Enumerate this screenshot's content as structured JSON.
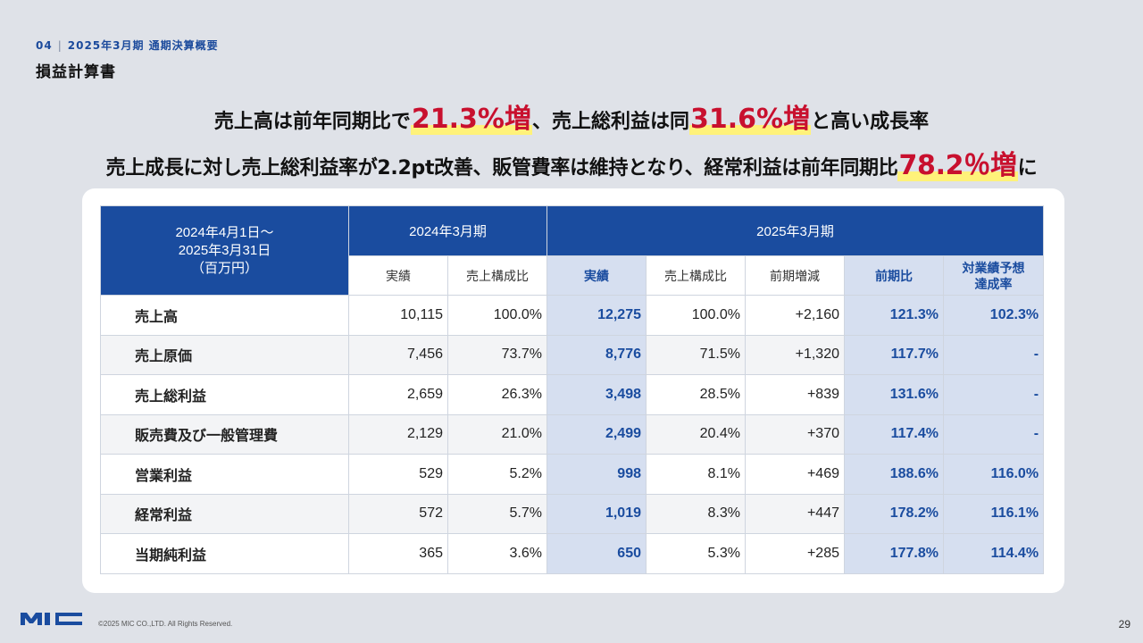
{
  "header": {
    "section_no": "04",
    "section_title": "2025年3月期 通期決算概要",
    "page_title": "損益計算書"
  },
  "headline1": {
    "p1": "売上高は前年同期比で",
    "h1": "21.3%増",
    "p2": "、売上総利益は同",
    "h2": "31.6%増",
    "p3": "と高い成長率"
  },
  "headline2": {
    "p1": "売上成長に対し売上総利益率が2.2pt改善、販管費率は維持となり、経常利益は前年同期比",
    "h1": "78.2％増",
    "p2": "に"
  },
  "table": {
    "corner": [
      "2024年4月1日～",
      "2025年3月31日",
      "（百万円）"
    ],
    "period_prev": "2024年3月期",
    "period_curr": "2025年3月期",
    "sub_headers": [
      "実績",
      "売上構成比",
      "実績",
      "売上構成比",
      "前期増減",
      "前期比",
      "対業績予想達成率"
    ],
    "sub_header_last_lines": [
      "対業績予想",
      "達成率"
    ],
    "rows": [
      {
        "label": "売上高",
        "cells": [
          "10,115",
          "100.0%",
          "12,275",
          "100.0%",
          "+2,160",
          "121.3%",
          "102.3%"
        ]
      },
      {
        "label": "売上原価",
        "cells": [
          "7,456",
          "73.7%",
          "8,776",
          "71.5%",
          "+1,320",
          "117.7%",
          "-"
        ]
      },
      {
        "label": "売上総利益",
        "cells": [
          "2,659",
          "26.3%",
          "3,498",
          "28.5%",
          "+839",
          "131.6%",
          "-"
        ]
      },
      {
        "label": "販売費及び一般管理費",
        "cells": [
          "2,129",
          "21.0%",
          "2,499",
          "20.4%",
          "+370",
          "117.4%",
          "-"
        ]
      },
      {
        "label": "営業利益",
        "cells": [
          "529",
          "5.2%",
          "998",
          "8.1%",
          "+469",
          "188.6%",
          "116.0%"
        ]
      },
      {
        "label": "経常利益",
        "cells": [
          "572",
          "5.7%",
          "1,019",
          "8.3%",
          "+447",
          "178.2%",
          "116.1%"
        ]
      },
      {
        "label": "当期純利益",
        "cells": [
          "365",
          "3.6%",
          "650",
          "5.3%",
          "+285",
          "177.8%",
          "114.4%"
        ]
      }
    ]
  },
  "footer": {
    "logo_text": "MIC",
    "copyright": "©2025 MIC CO.,LTD. All Rights Reserved.",
    "page_number": "29"
  },
  "colors": {
    "brand_blue": "#1a4c9f",
    "highlight_red": "#c8102e",
    "highlight_marker": "#fff27a",
    "highlight_cell": "#d6dff0"
  }
}
